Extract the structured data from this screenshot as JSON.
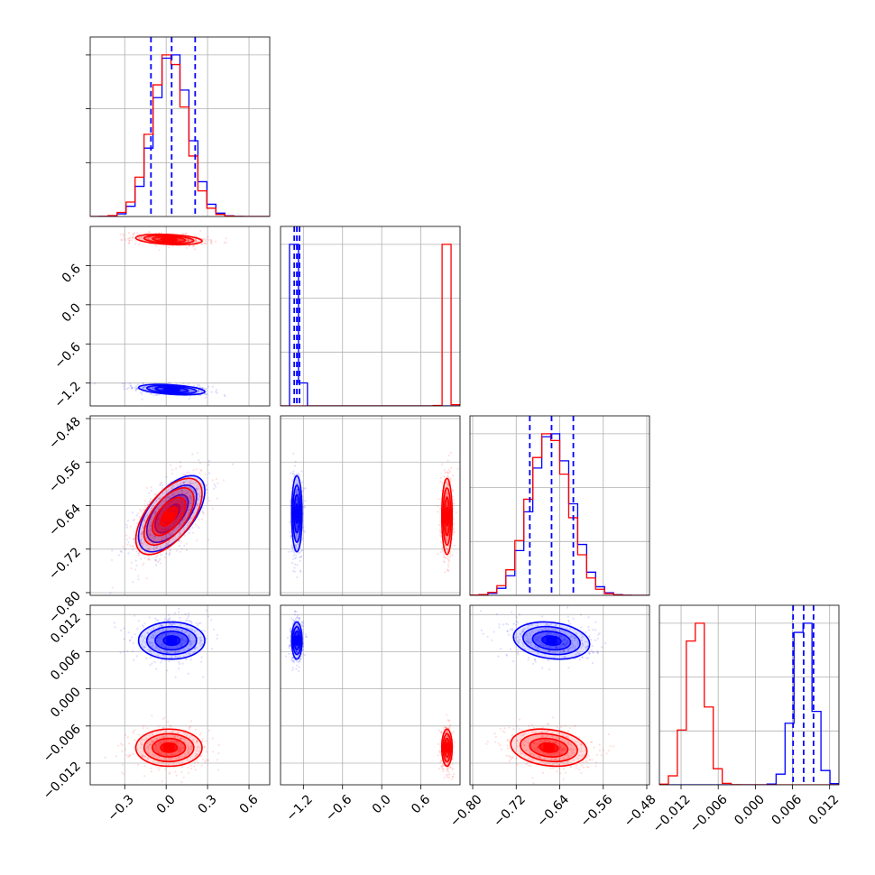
{
  "chart_data": {
    "type": "corner",
    "title": "",
    "grid": true,
    "parameters": [
      {
        "ticks": [
          -0.3,
          0.0,
          0.3,
          0.6
        ],
        "tick_labels": [
          "−0.3",
          "0.0",
          "0.3",
          "0.6"
        ],
        "range": [
          -0.55,
          0.75
        ]
      },
      {
        "ticks": [
          -1.2,
          -0.6,
          0.0,
          0.6
        ],
        "tick_labels": [
          "−1.2",
          "−0.6",
          "0.0",
          "0.6"
        ],
        "range": [
          -1.55,
          1.2
        ]
      },
      {
        "ticks": [
          -0.8,
          -0.72,
          -0.64,
          -0.56,
          -0.48
        ],
        "tick_labels": [
          "−0.80",
          "−0.72",
          "−0.64",
          "−0.56",
          "−0.48"
        ],
        "range": [
          -0.805,
          -0.475
        ]
      },
      {
        "ticks": [
          -0.012,
          -0.006,
          0.0,
          0.006,
          0.012
        ],
        "tick_labels": [
          "−0.012",
          "−0.006",
          "0.000",
          "0.006",
          "0.012"
        ],
        "range": [
          -0.0155,
          0.0135
        ]
      }
    ],
    "series": [
      {
        "color": "#0000ff",
        "means": [
          0.04,
          -1.3,
          -0.655,
          0.0078
        ],
        "sigmas": [
          0.12,
          0.04,
          0.035,
          0.0015
        ],
        "corr": {
          "0-1": -0.4,
          "0-2": 0.6,
          "0-3": 0.0,
          "1-2": 0.0,
          "1-3": 0.0,
          "2-3": -0.2
        }
      },
      {
        "color": "#ff0000",
        "means": [
          0.02,
          1.0,
          -0.66,
          -0.0095
        ],
        "sigmas": [
          0.12,
          0.04,
          0.035,
          0.0015
        ],
        "corr": {
          "0-1": -0.3,
          "0-2": 0.6,
          "0-3": 0.0,
          "1-2": 0.0,
          "1-3": 0.0,
          "2-3": -0.2
        }
      }
    ],
    "quantile_lines": [
      {
        "param": 0,
        "color": "#0000ff",
        "values": [
          -0.11,
          0.04,
          0.21
        ]
      },
      {
        "param": 1,
        "color": "#0000ff",
        "values": [
          -1.34,
          -1.3,
          -1.26
        ]
      },
      {
        "param": 2,
        "color": "#0000ff",
        "values": [
          -0.695,
          -0.655,
          -0.615
        ]
      },
      {
        "param": 3,
        "color": "#0000ff",
        "values": [
          0.0061,
          0.0078,
          0.0094
        ]
      }
    ]
  }
}
